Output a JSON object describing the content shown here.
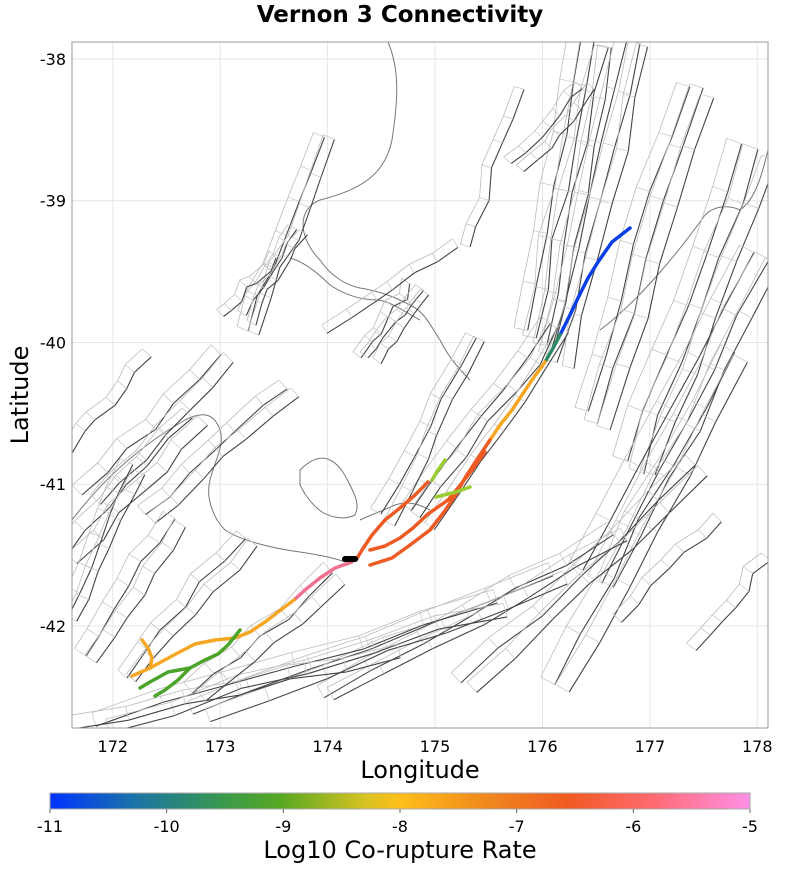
{
  "title": "Vernon 3 Connectivity",
  "xlabel": "Longitude",
  "ylabel": "Latitude",
  "colorbar": {
    "label": "Log10 Co-rupture Rate",
    "ticks": [
      "-11",
      "-10",
      "-9",
      "-8",
      "-7",
      "-6",
      "-5"
    ],
    "colors": [
      "#0033ff",
      "#1a73a8",
      "#3a9a4a",
      "#57a822",
      "#d7c222",
      "#ffbf1a",
      "#f08a1e",
      "#f05a22",
      "#ff6a70",
      "#ff90e8"
    ]
  },
  "axes": {
    "xticks": [
      "172",
      "173",
      "174",
      "175",
      "176",
      "177",
      "178"
    ],
    "yticks": [
      "-38",
      "-39",
      "-40",
      "-41",
      "-42"
    ]
  },
  "chart_data": {
    "type": "map",
    "xlim": [
      171.62,
      178.1
    ],
    "ylim": [
      -42.72,
      -37.88
    ],
    "xlabel": "Longitude",
    "ylabel": "Latitude",
    "title": "Vernon 3 Connectivity",
    "colorbar_range": [
      -11,
      -5
    ],
    "connected_ruptures": [
      {
        "segment": "northeast-blue",
        "log10_rate": -11,
        "color": "#0a3fe6"
      },
      {
        "segment": "north-green",
        "log10_rate": -9.8,
        "color": "#2d8a64"
      },
      {
        "segment": "central-orange",
        "log10_rate": -7.2,
        "color": "#f5a623"
      },
      {
        "segment": "central-red",
        "log10_rate": -6.2,
        "color": "#ee5a24"
      },
      {
        "segment": "east-red",
        "log10_rate": -6.2,
        "color": "#ee5a24"
      },
      {
        "segment": "south-red",
        "log10_rate": -6.2,
        "color": "#ee5a24"
      },
      {
        "segment": "lime-link",
        "log10_rate": -8.8,
        "color": "#9acd32"
      },
      {
        "segment": "southwest-pink",
        "log10_rate": -5.6,
        "color": "#f07090"
      },
      {
        "segment": "southwest-orange",
        "log10_rate": -7.4,
        "color": "#f5a623"
      },
      {
        "segment": "southwest-green",
        "log10_rate": -9.4,
        "color": "#4ca32a"
      },
      {
        "segment": "source-black",
        "log10_rate": null,
        "color": "#000000"
      }
    ]
  }
}
